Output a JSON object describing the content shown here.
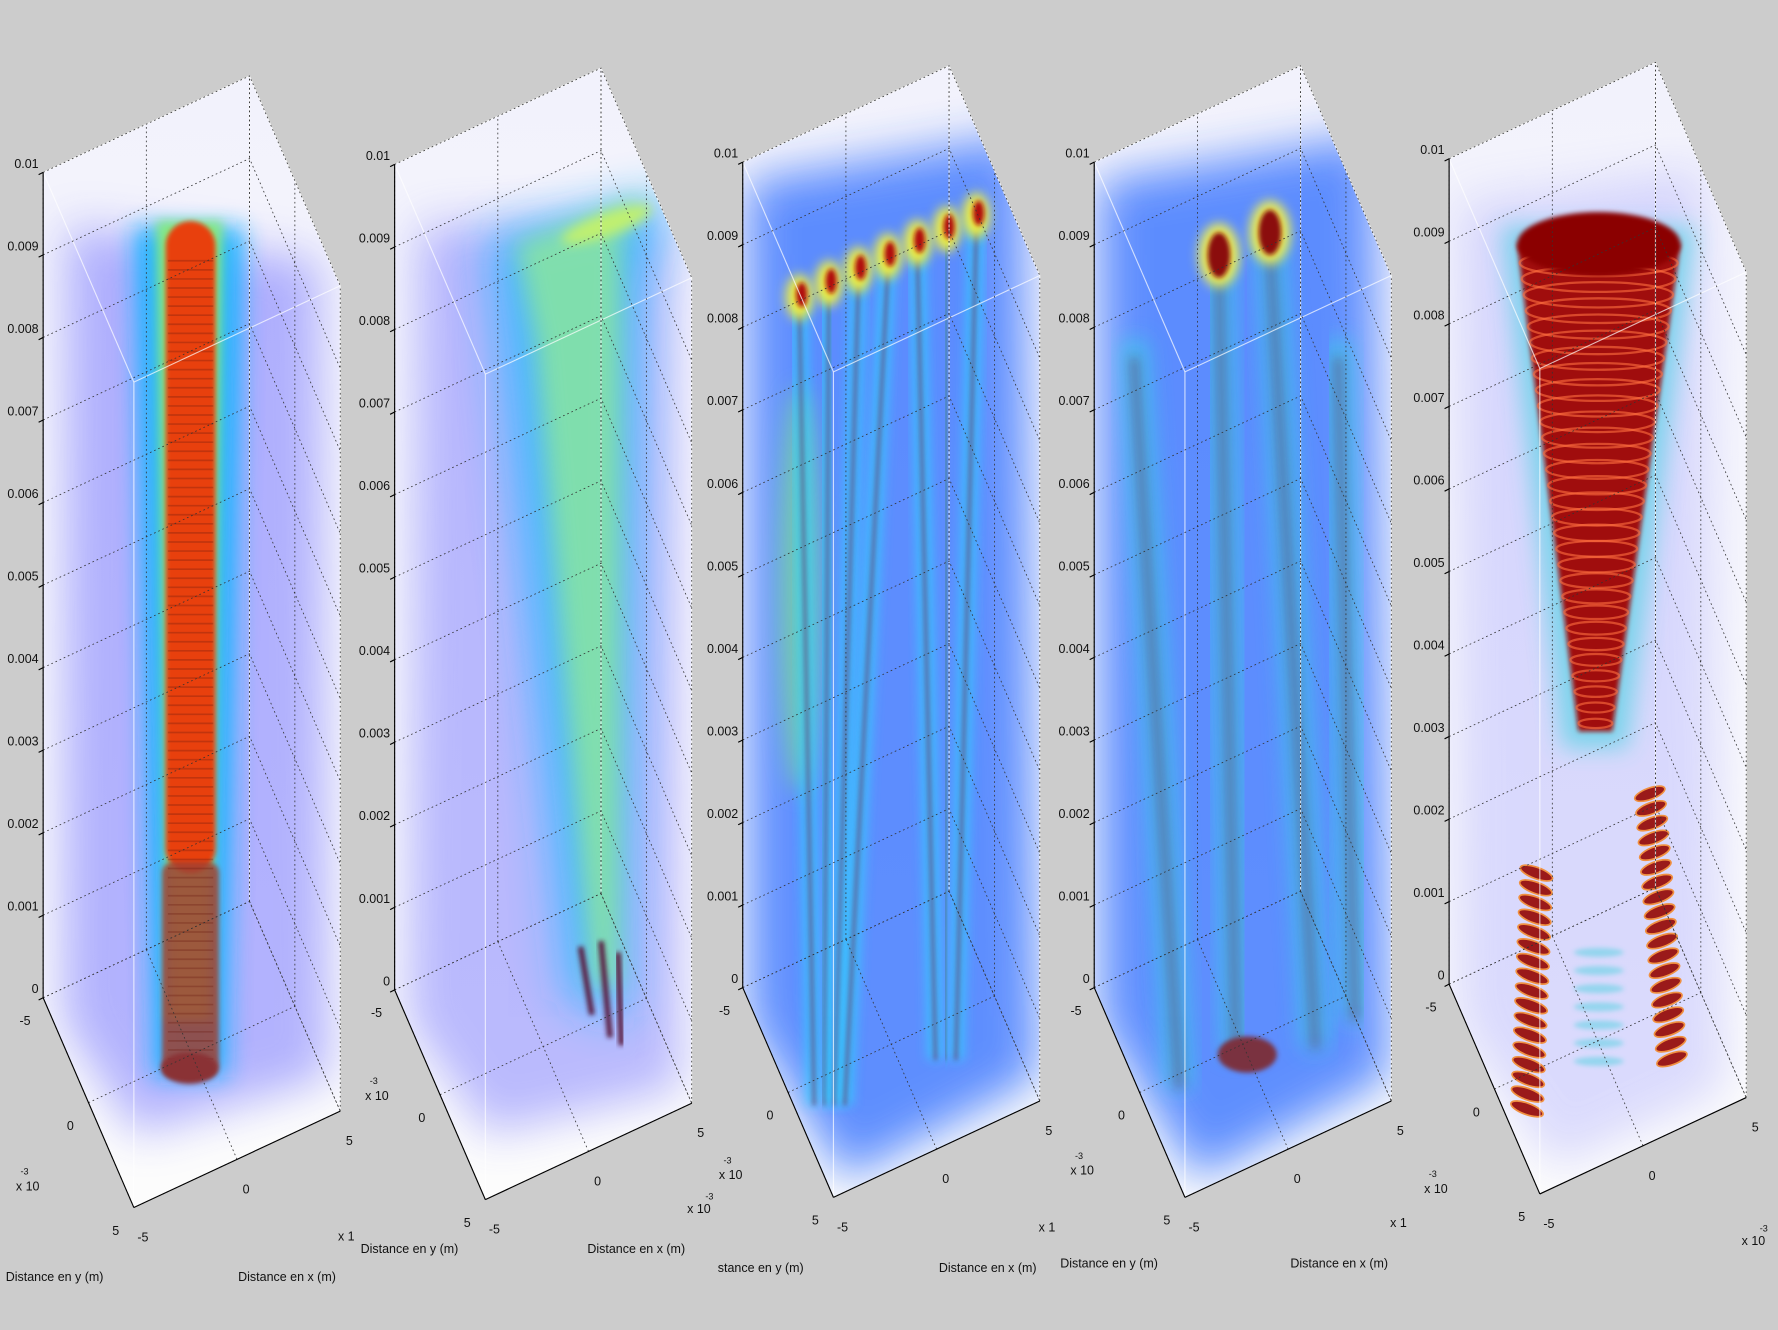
{
  "chart_data": [
    {
      "type": "volume",
      "xlabel": "Distance en x (m)",
      "ylabel": "Distance en y (m)",
      "zlim": [
        0,
        0.01
      ],
      "zticks": [
        0,
        0.001,
        0.002,
        0.003,
        0.004,
        0.005,
        0.006,
        0.007,
        0.008,
        0.009,
        0.01
      ],
      "xlim": [
        -5,
        5
      ],
      "xticks": [
        -5,
        0,
        5
      ],
      "ylim": [
        -5,
        5
      ],
      "yticks": [
        -5,
        0,
        5
      ],
      "y_multiplier": "x 10",
      "y_exponent": "-3",
      "x_multiplier": "x 1"
    },
    {
      "type": "volume",
      "xlabel": "Distance en x (m)",
      "ylabel": "Distance en y (m)",
      "zlim": [
        0,
        0.01
      ],
      "zticks": [
        0,
        0.001,
        0.002,
        0.003,
        0.004,
        0.005,
        0.006,
        0.007,
        0.008,
        0.009,
        0.01
      ],
      "xlim": [
        -5,
        5
      ],
      "xticks": [
        -5,
        0,
        5
      ],
      "ylim": [
        -5,
        5
      ],
      "yticks": [
        -5,
        0,
        5
      ],
      "y_multiplier": "x 10",
      "y_exponent": "-3",
      "x_multiplier": "x 10",
      "x_exponent": "-3"
    },
    {
      "type": "volume",
      "xlabel": "Distance en x (m)",
      "ylabel": "stance en y (m)",
      "zlim": [
        0,
        0.01
      ],
      "zticks": [
        0,
        0.001,
        0.002,
        0.003,
        0.004,
        0.005,
        0.006,
        0.007,
        0.008,
        0.009,
        0.01
      ],
      "xlim": [
        -5,
        5
      ],
      "xticks": [
        -5,
        0,
        5
      ],
      "ylim": [
        -5,
        5
      ],
      "yticks": [
        -5,
        0,
        5
      ],
      "y_multiplier": "x 10",
      "y_exponent": "-3",
      "x_multiplier": "x 1"
    },
    {
      "type": "volume",
      "xlabel": "Distance en x (m)",
      "ylabel": "Distance en y (m)",
      "zlim": [
        0,
        0.01
      ],
      "zticks": [
        0,
        0.001,
        0.002,
        0.003,
        0.004,
        0.005,
        0.006,
        0.007,
        0.008,
        0.009,
        0.01
      ],
      "xlim": [
        -5,
        5
      ],
      "xticks": [
        -5,
        0,
        5
      ],
      "ylim": [
        -5,
        5
      ],
      "yticks": [
        -5,
        0,
        5
      ],
      "y_multiplier": "x 10",
      "y_exponent": "-3",
      "x_multiplier": "x 1"
    },
    {
      "type": "volume",
      "zlim": [
        0,
        0.01
      ],
      "zticks": [
        0,
        0.001,
        0.002,
        0.003,
        0.004,
        0.005,
        0.006,
        0.007,
        0.008,
        0.009,
        0.01
      ],
      "xlim": [
        -5,
        5
      ],
      "xticks": [
        -5,
        0,
        5
      ],
      "ylim": [
        -5,
        5
      ],
      "yticks": [
        -5,
        0,
        5
      ],
      "y_multiplier": "x 10",
      "y_exponent": "-3",
      "x_multiplier": "x 10",
      "x_exponent": "-3"
    }
  ]
}
